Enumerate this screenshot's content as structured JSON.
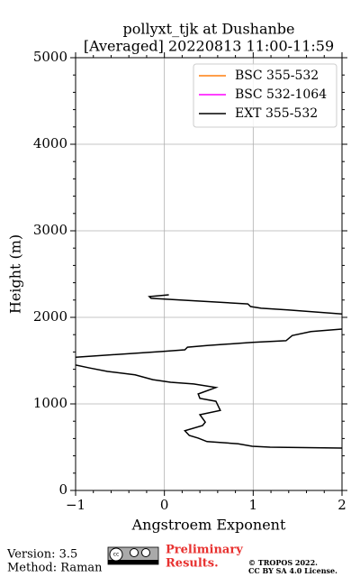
{
  "chart_data": {
    "type": "line",
    "title": [
      "pollyxt_tjk at Dushanbe",
      "[Averaged] 20220813 11:00-11:59"
    ],
    "x_label": "Angstroem Exponent",
    "y_label": "Height (m)",
    "xlim": [
      -1,
      2
    ],
    "ylim": [
      0,
      5000
    ],
    "xticks": [
      {
        "value": -1,
        "label": "−1"
      },
      0,
      1,
      2
    ],
    "yticks": [
      0,
      1000,
      2000,
      3000,
      4000,
      5000
    ],
    "grid": true,
    "legend": "upper right",
    "series": [
      {
        "name": "BSC 355-532",
        "color": "#ff7f0e",
        "values": [],
        "y": []
      },
      {
        "name": "BSC 532-1064",
        "color": "#ff00ff",
        "values": [],
        "y": []
      },
      {
        "name": "EXT 355-532",
        "color": "#000000",
        "values": [
          0.05,
          -0.17,
          -0.15,
          0.94,
          0.97,
          1.09,
          1.39,
          2.0,
          null,
          2.0,
          1.65,
          1.44,
          1.37,
          0.99,
          0.48,
          0.26,
          0.23,
          -0.03,
          -1.0,
          null,
          -1.0,
          -0.84,
          -0.64,
          -0.33,
          -0.13,
          0.07,
          0.33,
          0.58,
          0.38,
          0.4,
          0.58,
          0.63,
          0.4,
          0.46,
          0.43,
          0.23,
          0.28,
          0.38,
          0.48,
          0.83,
          0.99,
          1.19,
          2.0
        ],
        "y": [
          2260,
          2240,
          2220,
          2155,
          2125,
          2105,
          2085,
          2040,
          null,
          1865,
          1835,
          1790,
          1730,
          1710,
          1675,
          1655,
          1625,
          1605,
          1540,
          null,
          1450,
          1415,
          1375,
          1335,
          1280,
          1250,
          1230,
          1190,
          1115,
          1065,
          1030,
          925,
          875,
          790,
          750,
          690,
          635,
          605,
          565,
          540,
          510,
          500,
          490
        ]
      }
    ]
  },
  "footer": {
    "version": "Version: 3.5",
    "method": "Method: Raman",
    "preliminary": [
      "Preliminary",
      "Results."
    ],
    "copyright": [
      "© TROPOS 2022.",
      "CC BY SA 4.0 License."
    ]
  }
}
